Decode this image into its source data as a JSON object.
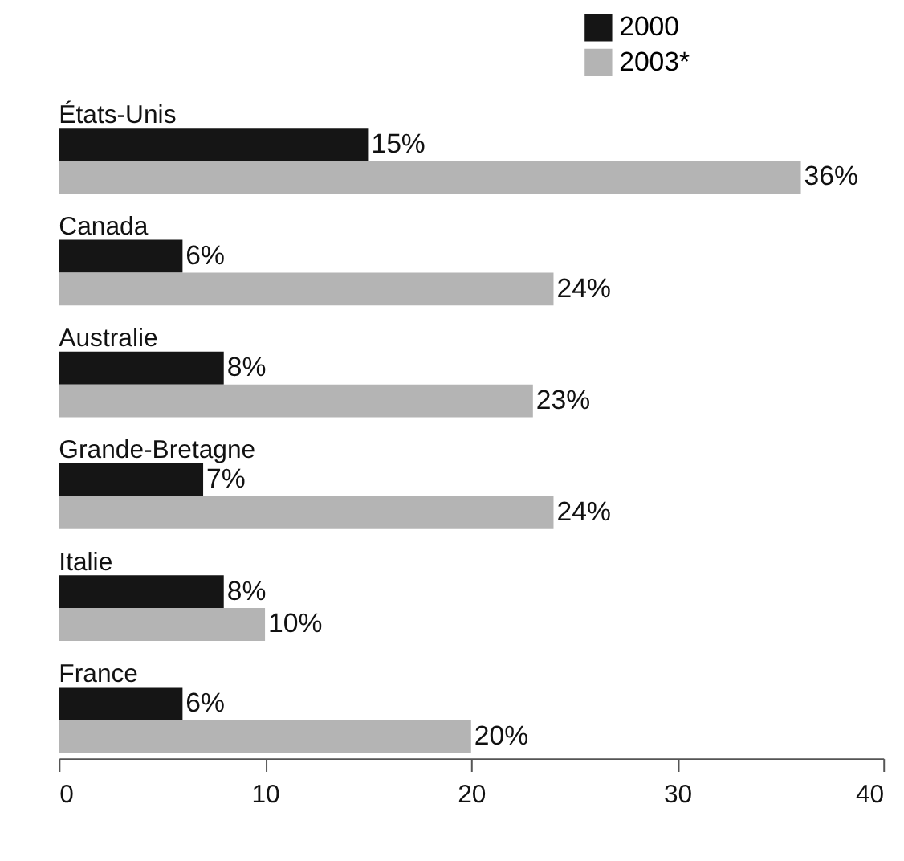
{
  "chart_data": {
    "type": "bar",
    "orientation": "horizontal",
    "categories": [
      "États-Unis",
      "Canada",
      "Australie",
      "Grande-Bretagne",
      "Italie",
      "France"
    ],
    "series": [
      {
        "name": "2000",
        "color": "#151515",
        "values": [
          15,
          6,
          8,
          7,
          8,
          6
        ],
        "value_labels": [
          "15%",
          "6%",
          "8%",
          "7%",
          "8%",
          "6%"
        ]
      },
      {
        "name": "2003*",
        "color": "#b4b4b4",
        "values": [
          36,
          24,
          23,
          24,
          10,
          20
        ],
        "value_labels": [
          "36%",
          "24%",
          "23%",
          "24%",
          "10%",
          "20%"
        ]
      }
    ],
    "xlim": [
      0,
      40
    ],
    "xticks": [
      0,
      10,
      20,
      30,
      40
    ],
    "grid": false,
    "legend": "top right"
  }
}
